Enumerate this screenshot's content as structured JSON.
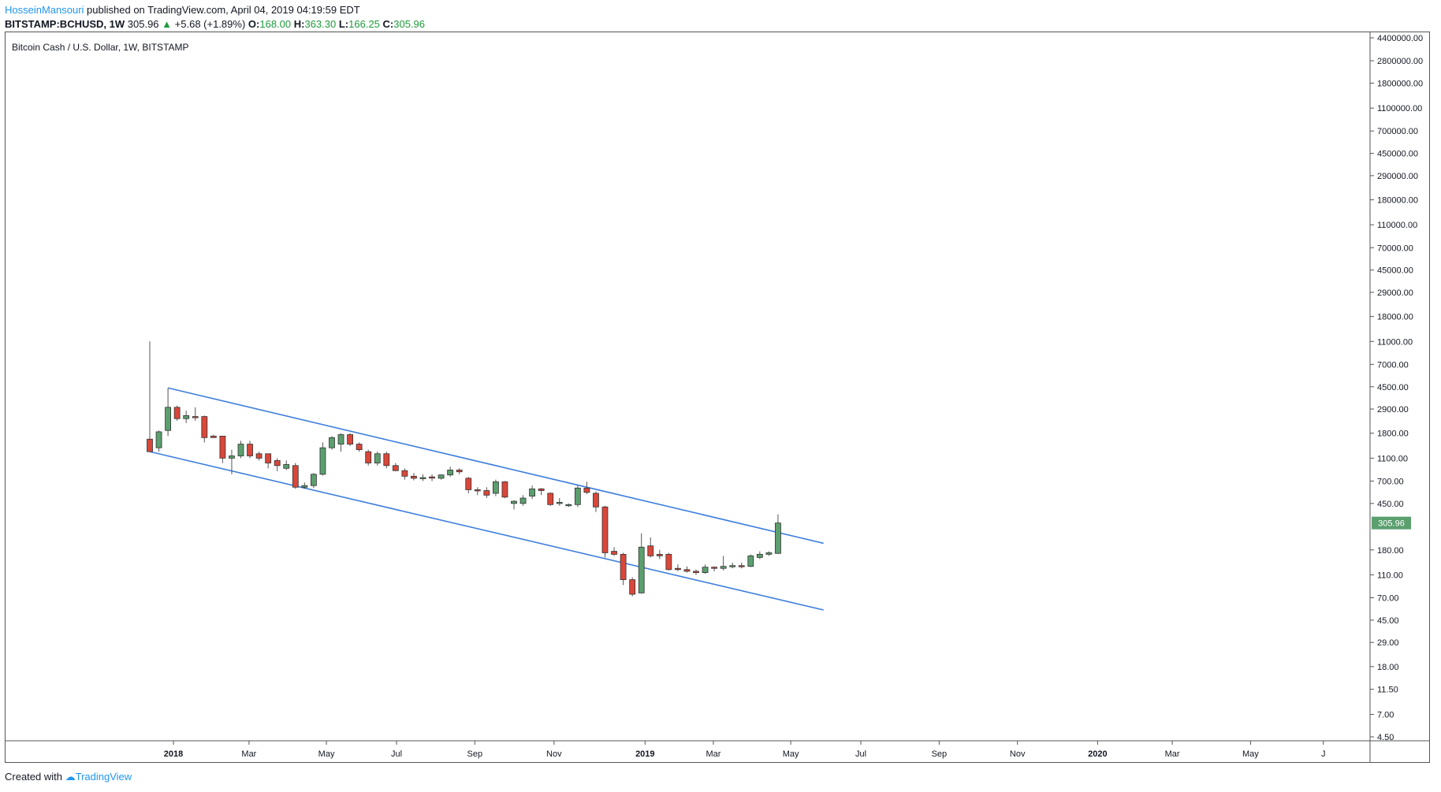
{
  "header": {
    "author": "HosseinMansouri",
    "published": " published on TradingView.com, April 04, 2019 04:19:59 EDT",
    "symbol": "BITSTAMP:BCHUSD, 1W",
    "last": "305.96",
    "change": "+5.68 (+1.89%)",
    "o_label": "O:",
    "o_value": "168.00",
    "h_label": "H:",
    "h_value": "363.30",
    "l_label": "L:",
    "l_value": "166.25",
    "c_label": "C:",
    "c_value": "305.96"
  },
  "footer": {
    "created_with": "Created with",
    "brand": "TradingView"
  },
  "colors": {
    "up": "#5b9f6e",
    "down": "#d9473a",
    "channel": "#3d7ede",
    "price_tag": "#5b9f6e",
    "text": "#131722"
  },
  "chart_data": {
    "type": "candlestick",
    "title": "Bitcoin Cash / U.S. Dollar, 1W, BITSTAMP",
    "y_scale": "log",
    "ylim": [
      4.5,
      4400000
    ],
    "y_ticks": [
      "4400000.00",
      "2800000.00",
      "1800000.00",
      "1100000.00",
      "700000.00",
      "450000.00",
      "290000.00",
      "180000.00",
      "110000.00",
      "70000.00",
      "45000.00",
      "29000.00",
      "18000.00",
      "11000.00",
      "7000.00",
      "4500.00",
      "2900.00",
      "1800.00",
      "1100.00",
      "700.00",
      "450.00",
      "180.00",
      "110.00",
      "70.00",
      "45.00",
      "29.00",
      "18.00",
      "11.50",
      "7.00",
      "4.50"
    ],
    "x_ticks": [
      {
        "label": "2018",
        "bold": true
      },
      {
        "label": "Mar",
        "bold": false
      },
      {
        "label": "May",
        "bold": false
      },
      {
        "label": "Jul",
        "bold": false
      },
      {
        "label": "Sep",
        "bold": false
      },
      {
        "label": "Nov",
        "bold": false
      },
      {
        "label": "2019",
        "bold": true
      },
      {
        "label": "Mar",
        "bold": false
      },
      {
        "label": "May",
        "bold": false
      },
      {
        "label": "Jul",
        "bold": false
      },
      {
        "label": "Sep",
        "bold": false
      },
      {
        "label": "Nov",
        "bold": false
      },
      {
        "label": "2020",
        "bold": true
      },
      {
        "label": "Mar",
        "bold": false
      },
      {
        "label": "May",
        "bold": false
      },
      {
        "label": "J",
        "bold": false
      }
    ],
    "x_tick_weeks": [
      2.6,
      10.9,
      19.4,
      27.1,
      35.7,
      44.4,
      54.4,
      61.9,
      70.4,
      78.1,
      86.7,
      95.3,
      104.1,
      112.3,
      120.9,
      128.9
    ],
    "candles": [
      {
        "o": 1600,
        "h": 11000,
        "l": 1250,
        "c": 1250
      },
      {
        "o": 1350,
        "h": 1900,
        "l": 1250,
        "c": 1850
      },
      {
        "o": 1900,
        "h": 4400,
        "l": 1700,
        "c": 3000
      },
      {
        "o": 3000,
        "h": 3100,
        "l": 2300,
        "c": 2400
      },
      {
        "o": 2400,
        "h": 2800,
        "l": 2200,
        "c": 2550
      },
      {
        "o": 2500,
        "h": 3000,
        "l": 2300,
        "c": 2450
      },
      {
        "o": 2500,
        "h": 2550,
        "l": 1500,
        "c": 1650
      },
      {
        "o": 1700,
        "h": 1750,
        "l": 1650,
        "c": 1650
      },
      {
        "o": 1700,
        "h": 1700,
        "l": 1000,
        "c": 1100
      },
      {
        "o": 1100,
        "h": 1300,
        "l": 800,
        "c": 1150
      },
      {
        "o": 1150,
        "h": 1550,
        "l": 1100,
        "c": 1450
      },
      {
        "o": 1450,
        "h": 1550,
        "l": 1100,
        "c": 1150
      },
      {
        "o": 1200,
        "h": 1250,
        "l": 1050,
        "c": 1100
      },
      {
        "o": 1200,
        "h": 1200,
        "l": 900,
        "c": 1000
      },
      {
        "o": 1050,
        "h": 1100,
        "l": 850,
        "c": 950
      },
      {
        "o": 900,
        "h": 1050,
        "l": 870,
        "c": 970
      },
      {
        "o": 950,
        "h": 1000,
        "l": 600,
        "c": 620
      },
      {
        "o": 620,
        "h": 680,
        "l": 600,
        "c": 640
      },
      {
        "o": 640,
        "h": 820,
        "l": 610,
        "c": 800
      },
      {
        "o": 800,
        "h": 1500,
        "l": 780,
        "c": 1350
      },
      {
        "o": 1350,
        "h": 1700,
        "l": 1300,
        "c": 1650
      },
      {
        "o": 1450,
        "h": 1800,
        "l": 1250,
        "c": 1750
      },
      {
        "o": 1750,
        "h": 1800,
        "l": 1400,
        "c": 1450
      },
      {
        "o": 1450,
        "h": 1500,
        "l": 1250,
        "c": 1300
      },
      {
        "o": 1250,
        "h": 1300,
        "l": 950,
        "c": 1000
      },
      {
        "o": 1000,
        "h": 1250,
        "l": 950,
        "c": 1200
      },
      {
        "o": 1200,
        "h": 1250,
        "l": 900,
        "c": 950
      },
      {
        "o": 950,
        "h": 1000,
        "l": 850,
        "c": 860
      },
      {
        "o": 860,
        "h": 900,
        "l": 720,
        "c": 770
      },
      {
        "o": 770,
        "h": 820,
        "l": 710,
        "c": 740
      },
      {
        "o": 740,
        "h": 800,
        "l": 700,
        "c": 750
      },
      {
        "o": 760,
        "h": 800,
        "l": 700,
        "c": 750
      },
      {
        "o": 740,
        "h": 800,
        "l": 720,
        "c": 790
      },
      {
        "o": 790,
        "h": 930,
        "l": 760,
        "c": 870
      },
      {
        "o": 870,
        "h": 900,
        "l": 800,
        "c": 840
      },
      {
        "o": 740,
        "h": 760,
        "l": 550,
        "c": 590
      },
      {
        "o": 590,
        "h": 620,
        "l": 530,
        "c": 580
      },
      {
        "o": 580,
        "h": 620,
        "l": 500,
        "c": 530
      },
      {
        "o": 550,
        "h": 720,
        "l": 520,
        "c": 690
      },
      {
        "o": 690,
        "h": 700,
        "l": 500,
        "c": 510
      },
      {
        "o": 450,
        "h": 480,
        "l": 400,
        "c": 470
      },
      {
        "o": 450,
        "h": 530,
        "l": 430,
        "c": 500
      },
      {
        "o": 520,
        "h": 640,
        "l": 490,
        "c": 600
      },
      {
        "o": 600,
        "h": 610,
        "l": 530,
        "c": 580
      },
      {
        "o": 550,
        "h": 560,
        "l": 430,
        "c": 440
      },
      {
        "o": 450,
        "h": 500,
        "l": 430,
        "c": 460
      },
      {
        "o": 440,
        "h": 450,
        "l": 420,
        "c": 440
      },
      {
        "o": 440,
        "h": 640,
        "l": 420,
        "c": 610
      },
      {
        "o": 610,
        "h": 690,
        "l": 540,
        "c": 560
      },
      {
        "o": 550,
        "h": 570,
        "l": 380,
        "c": 420
      },
      {
        "o": 420,
        "h": 430,
        "l": 155,
        "c": 170
      },
      {
        "o": 175,
        "h": 190,
        "l": 160,
        "c": 165
      },
      {
        "o": 165,
        "h": 170,
        "l": 90,
        "c": 100
      },
      {
        "o": 100,
        "h": 105,
        "l": 72,
        "c": 75
      },
      {
        "o": 77,
        "h": 250,
        "l": 76,
        "c": 190
      },
      {
        "o": 195,
        "h": 230,
        "l": 155,
        "c": 160
      },
      {
        "o": 165,
        "h": 180,
        "l": 150,
        "c": 160
      },
      {
        "o": 165,
        "h": 170,
        "l": 120,
        "c": 122
      },
      {
        "o": 125,
        "h": 135,
        "l": 118,
        "c": 122
      },
      {
        "o": 122,
        "h": 130,
        "l": 115,
        "c": 118
      },
      {
        "o": 118,
        "h": 122,
        "l": 110,
        "c": 115
      },
      {
        "o": 115,
        "h": 135,
        "l": 112,
        "c": 128
      },
      {
        "o": 128,
        "h": 130,
        "l": 118,
        "c": 125
      },
      {
        "o": 125,
        "h": 160,
        "l": 120,
        "c": 130
      },
      {
        "o": 130,
        "h": 140,
        "l": 125,
        "c": 132
      },
      {
        "o": 132,
        "h": 140,
        "l": 125,
        "c": 130
      },
      {
        "o": 130,
        "h": 165,
        "l": 128,
        "c": 160
      },
      {
        "o": 155,
        "h": 175,
        "l": 150,
        "c": 165
      },
      {
        "o": 165,
        "h": 175,
        "l": 160,
        "c": 170
      },
      {
        "o": 168,
        "h": 363.3,
        "l": 166.25,
        "c": 305.96
      }
    ],
    "channel": {
      "upper": [
        {
          "week": 2,
          "price": 4400
        },
        {
          "week": 74,
          "price": 205
        }
      ],
      "lower": [
        {
          "week": 0,
          "price": 1250
        },
        {
          "week": 74,
          "price": 55
        }
      ]
    },
    "last_price_label": "305.96"
  }
}
